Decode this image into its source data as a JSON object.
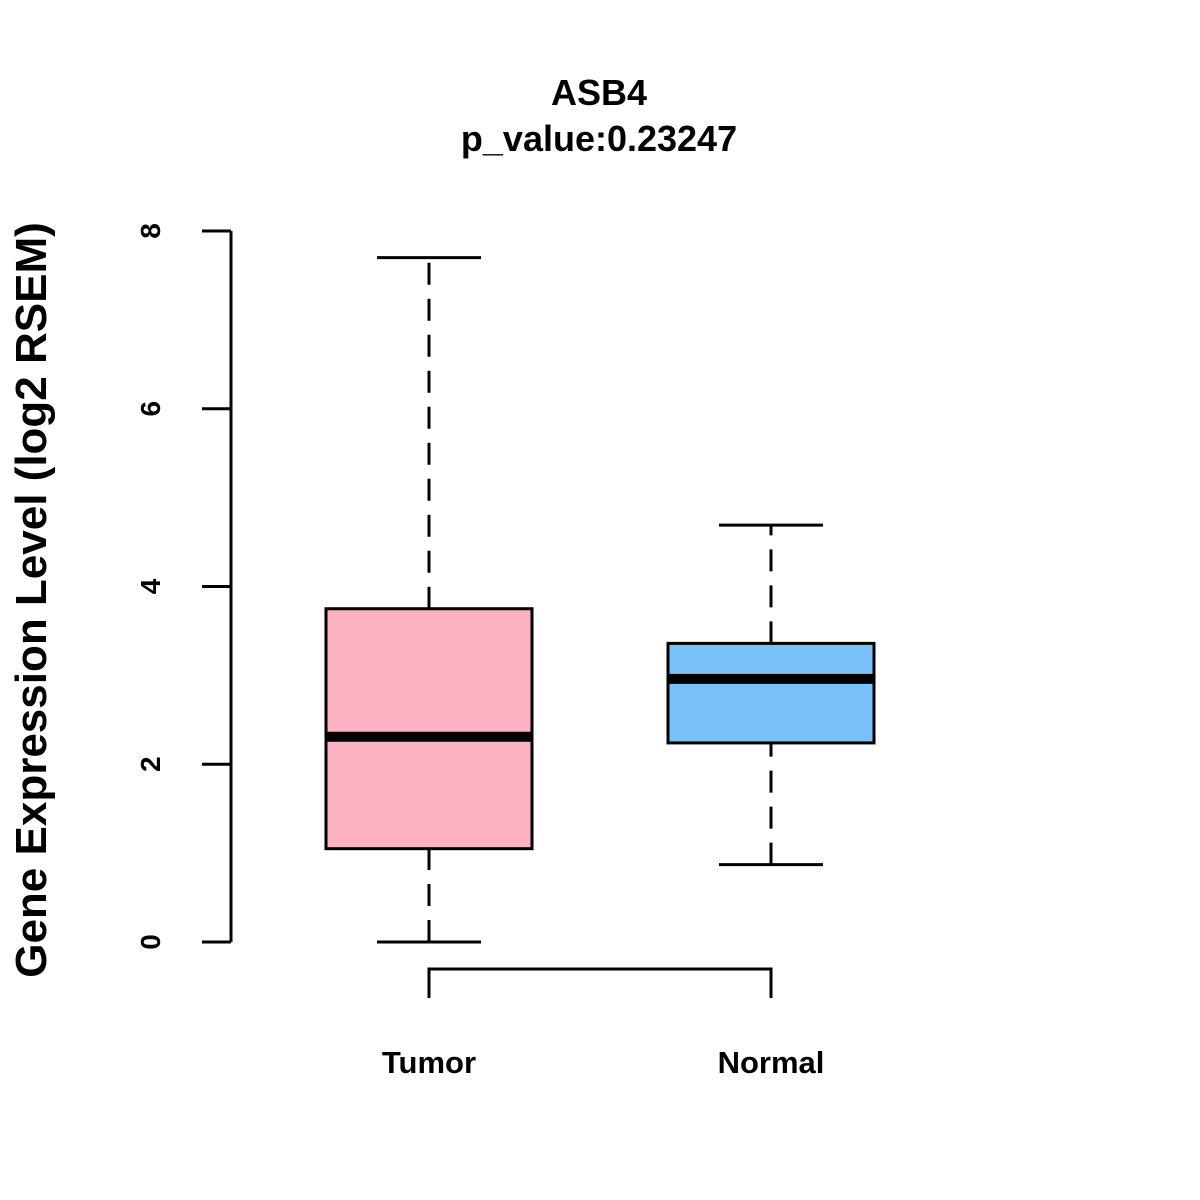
{
  "chart_data": {
    "type": "boxplot",
    "title": "ASB4",
    "subtitle": "p_value:0.23247",
    "xlabel": "",
    "ylabel": "Gene Expression Level (log2 RSEM)",
    "ylim": [
      0,
      8
    ],
    "yticks": [
      0,
      2,
      4,
      6,
      8
    ],
    "grid": false,
    "legend": "none",
    "categories": [
      "Tumor",
      "Normal"
    ],
    "series": [
      {
        "category": "Tumor",
        "min": 0.0,
        "q1": 1.05,
        "median": 2.31,
        "q3": 3.75,
        "max": 7.7,
        "color": "#FDB2C2"
      },
      {
        "category": "Normal",
        "min": 0.87,
        "q1": 2.24,
        "median": 2.96,
        "q3": 3.36,
        "max": 4.69,
        "color": "#79C2F9"
      }
    ],
    "comparison_bracket": {
      "between": [
        "Tumor",
        "Normal"
      ]
    }
  }
}
